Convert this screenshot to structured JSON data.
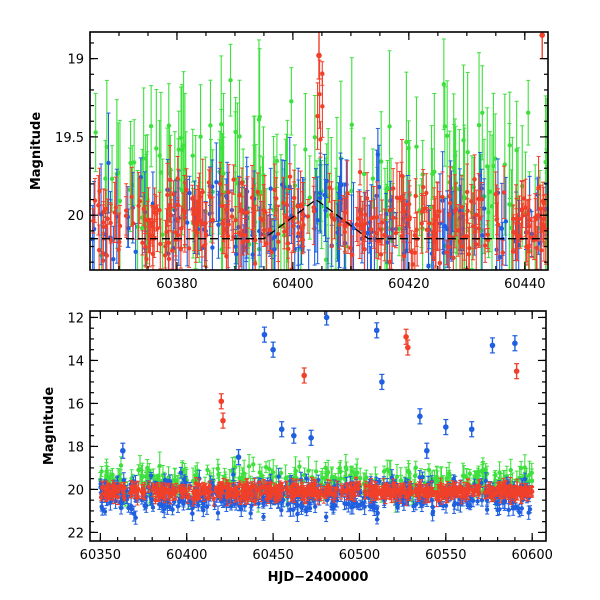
{
  "palette": {
    "blue": "#1f5fe0",
    "red": "#f0402a",
    "green": "#3ee03e"
  },
  "chart_data": [
    {
      "type": "scatter",
      "xlabel": "",
      "ylabel": "Magnitude",
      "xlim": [
        60365,
        60444
      ],
      "ylim": [
        20.35,
        18.83
      ],
      "inverted_y": true,
      "xticks": [
        60380,
        60400,
        60420,
        60440
      ],
      "yticks": [
        19,
        19.5,
        20
      ],
      "yticklabels": [
        "19",
        "19.5",
        "20"
      ],
      "fit_line": {
        "style": "dashed",
        "x": [
          60365,
          60395,
          60404,
          60413,
          60444
        ],
        "y": [
          20.15,
          20.15,
          19.9,
          20.15,
          20.15
        ]
      },
      "series": [
        {
          "color_key": "red",
          "x_range": [
            60365,
            60444
          ],
          "typical_mag": 20.05,
          "scatter": 0.25,
          "errbar": 0.18,
          "features": [
            {
              "x": 60404.5,
              "y": 18.98,
              "note": "peak"
            },
            {
              "x": 60443,
              "y": 18.85
            }
          ]
        },
        {
          "color_key": "blue",
          "x_range": [
            60365,
            60444
          ],
          "typical_mag": 20.05,
          "scatter": 0.3,
          "errbar": 0.25
        },
        {
          "color_key": "green",
          "x_range": [
            60365,
            60444
          ],
          "typical_mag": 19.8,
          "scatter": 0.45,
          "errbar": 0.4
        }
      ]
    },
    {
      "type": "scatter",
      "xlabel": "HJD−2400000",
      "ylabel": "Magnitude",
      "xlim": [
        60344,
        60608
      ],
      "ylim": [
        22.4,
        11.7
      ],
      "inverted_y": true,
      "xticks": [
        60350,
        60400,
        60450,
        60500,
        60550,
        60600
      ],
      "yticks": [
        12,
        14,
        16,
        18,
        20,
        22
      ],
      "series": [
        {
          "color_key": "blue",
          "x_range": [
            60350,
            60600
          ],
          "typical_mag": 20.3,
          "scatter": 0.8,
          "errbar": 0.3,
          "outliers": [
            {
              "x": 60363,
              "y": 18.2
            },
            {
              "x": 60430,
              "y": 18.5
            },
            {
              "x": 60445,
              "y": 12.8
            },
            {
              "x": 60450,
              "y": 13.5
            },
            {
              "x": 60455,
              "y": 17.2
            },
            {
              "x": 60462,
              "y": 17.5
            },
            {
              "x": 60472,
              "y": 17.6
            },
            {
              "x": 60481,
              "y": 12.0
            },
            {
              "x": 60510,
              "y": 12.6
            },
            {
              "x": 60513,
              "y": 15.0
            },
            {
              "x": 60535,
              "y": 16.6
            },
            {
              "x": 60539,
              "y": 18.2
            },
            {
              "x": 60550,
              "y": 17.1
            },
            {
              "x": 60565,
              "y": 17.2
            },
            {
              "x": 60577,
              "y": 13.3
            },
            {
              "x": 60590,
              "y": 13.2
            }
          ]
        },
        {
          "color_key": "red",
          "x_range": [
            60350,
            60600
          ],
          "typical_mag": 20.1,
          "scatter": 0.3,
          "errbar": 0.3,
          "outliers": [
            {
              "x": 60420,
              "y": 15.9
            },
            {
              "x": 60421,
              "y": 16.8
            },
            {
              "x": 60468,
              "y": 14.7
            },
            {
              "x": 60527,
              "y": 12.9
            },
            {
              "x": 60528,
              "y": 13.4
            },
            {
              "x": 60591,
              "y": 14.5
            }
          ]
        },
        {
          "color_key": "green",
          "x_range": [
            60350,
            60600
          ],
          "typical_mag": 19.6,
          "scatter": 0.7,
          "errbar": 0.5
        }
      ]
    }
  ]
}
